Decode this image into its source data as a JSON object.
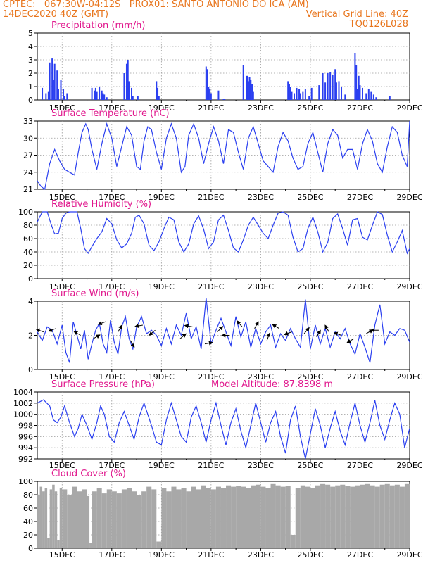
{
  "header": {
    "line1_left": "CPTEC:   067:30W-04:12S   PROX01: SANTO ANTONIO DO ICA (AM)",
    "line2_left": "14DEC2020 40Z (GMT)",
    "line2_right": "Vertical Grid Line: 40Z",
    "line3_right": "TQ0126L028"
  },
  "colors": {
    "header": "#e8761e",
    "title": "#e0168c",
    "series": "#2a3ff0",
    "cloud": "#a8a8a8",
    "grid": "#9a9a9a"
  },
  "x_tick_labels": [
    "15DEC",
    "17DEC",
    "19DEC",
    "21DEC",
    "23DEC",
    "25DEC",
    "27DEC",
    "29DEC"
  ],
  "chart_data": [
    {
      "type": "bar",
      "title": "Precipitation (mm/h)",
      "ylim": [
        0,
        5
      ],
      "yticks": [
        "0",
        "1",
        "2",
        "3",
        "4",
        "5"
      ],
      "x_unit": "day of December 2020",
      "x": [
        14.2,
        14.35,
        14.45,
        14.5,
        14.6,
        14.65,
        14.7,
        14.8,
        14.85,
        14.95,
        15.05,
        15.1,
        15.2,
        16.2,
        16.3,
        16.35,
        16.4,
        16.5,
        16.6,
        16.65,
        16.7,
        16.8,
        17.5,
        17.6,
        17.65,
        17.7,
        17.8,
        17.85,
        18.05,
        18.8,
        18.85,
        18.9,
        20.8,
        20.85,
        20.9,
        20.95,
        21.0,
        21.3,
        21.5,
        21.55,
        22.3,
        22.45,
        22.5,
        22.55,
        22.6,
        22.65,
        22.7,
        24.1,
        24.15,
        24.2,
        24.25,
        24.35,
        24.45,
        24.55,
        24.6,
        24.7,
        24.8,
        24.95,
        25.05,
        25.35,
        25.5,
        25.6,
        25.7,
        25.8,
        25.9,
        26.0,
        26.05,
        26.15,
        26.25,
        26.4,
        26.8,
        26.85,
        26.9,
        26.95,
        27.0,
        27.1,
        27.25,
        27.35,
        27.45,
        27.55,
        27.65,
        28.2
      ],
      "values": [
        0.9,
        0.5,
        0.6,
        2.8,
        3.1,
        1.5,
        2.7,
        2.2,
        0.8,
        1.5,
        0.8,
        0.3,
        0.5,
        0.9,
        0.7,
        0.9,
        0.6,
        1.0,
        0.7,
        0.5,
        0.4,
        0.2,
        2.0,
        2.7,
        3.0,
        1.4,
        0.9,
        0.3,
        0.3,
        1.4,
        0.9,
        0.3,
        2.5,
        2.3,
        1.0,
        0.8,
        0.5,
        0.7,
        0.1,
        0.1,
        2.6,
        1.8,
        1.4,
        1.7,
        1.5,
        1.2,
        0.6,
        1.4,
        1.2,
        1.0,
        0.6,
        0.5,
        0.9,
        0.8,
        0.5,
        0.6,
        0.8,
        0.3,
        0.9,
        1.1,
        2.0,
        1.3,
        2.0,
        2.1,
        1.9,
        2.3,
        1.3,
        1.4,
        1.0,
        0.4,
        3.5,
        2.6,
        0.8,
        1.8,
        1.1,
        0.9,
        0.5,
        0.8,
        0.6,
        0.4,
        0.2,
        0.3
      ]
    },
    {
      "type": "line",
      "title": "Surface Temperature (nC)",
      "ylim": [
        21,
        33
      ],
      "yticks": [
        "21",
        "24",
        "27",
        "30",
        "33"
      ],
      "x_unit": "day of December 2020",
      "x": [
        14.0,
        14.15,
        14.3,
        14.5,
        14.7,
        14.9,
        15.1,
        15.3,
        15.5,
        15.65,
        15.8,
        15.95,
        16.05,
        16.2,
        16.4,
        16.6,
        16.8,
        17.0,
        17.2,
        17.4,
        17.6,
        17.8,
        18.0,
        18.15,
        18.3,
        18.45,
        18.6,
        18.8,
        19.0,
        19.2,
        19.4,
        19.6,
        19.8,
        19.95,
        20.1,
        20.3,
        20.5,
        20.7,
        20.9,
        21.1,
        21.3,
        21.5,
        21.7,
        21.9,
        22.1,
        22.3,
        22.5,
        22.7,
        22.9,
        23.1,
        23.3,
        23.5,
        23.7,
        23.9,
        24.1,
        24.3,
        24.5,
        24.7,
        24.9,
        25.1,
        25.3,
        25.5,
        25.7,
        25.9,
        26.1,
        26.3,
        26.5,
        26.7,
        26.9,
        27.1,
        27.3,
        27.5,
        27.7,
        27.9,
        28.1,
        28.3,
        28.5,
        28.7,
        28.9,
        29.0
      ],
      "values": [
        22.5,
        21.5,
        21.0,
        25.5,
        28.0,
        26.0,
        24.5,
        24.0,
        23.5,
        27.5,
        31.0,
        32.5,
        31.5,
        28.0,
        24.5,
        29.0,
        32.5,
        30.0,
        25.0,
        28.5,
        32.0,
        30.5,
        25.0,
        24.5,
        29.5,
        32.0,
        31.5,
        27.5,
        24.5,
        30.0,
        32.5,
        30.0,
        24.0,
        25.0,
        30.5,
        32.5,
        30.0,
        25.5,
        29.0,
        32.0,
        29.5,
        25.5,
        31.5,
        31.0,
        27.5,
        24.5,
        30.0,
        32.0,
        29.0,
        26.0,
        25.0,
        24.0,
        28.5,
        31.0,
        29.5,
        26.5,
        24.5,
        25.0,
        29.0,
        31.0,
        27.5,
        24.0,
        29.0,
        31.5,
        30.5,
        26.5,
        28.0,
        28.0,
        24.5,
        29.0,
        31.5,
        29.5,
        25.5,
        24.0,
        28.5,
        32.0,
        31.0,
        27.0,
        25.0,
        33.0
      ]
    },
    {
      "type": "line",
      "title": "Relative Humidity (%)",
      "ylim": [
        0,
        100
      ],
      "yticks": [
        "0",
        "20",
        "40",
        "60",
        "80",
        "100"
      ],
      "x_unit": "day of December 2020",
      "x": [
        14.0,
        14.2,
        14.4,
        14.55,
        14.7,
        14.85,
        15.0,
        15.15,
        15.3,
        15.45,
        15.6,
        15.75,
        15.9,
        16.05,
        16.2,
        16.4,
        16.6,
        16.8,
        17.0,
        17.2,
        17.4,
        17.6,
        17.8,
        17.95,
        18.1,
        18.3,
        18.5,
        18.7,
        18.9,
        19.1,
        19.3,
        19.5,
        19.7,
        19.9,
        20.1,
        20.3,
        20.5,
        20.7,
        20.9,
        21.1,
        21.3,
        21.5,
        21.7,
        21.9,
        22.1,
        22.3,
        22.5,
        22.7,
        22.9,
        23.1,
        23.3,
        23.5,
        23.7,
        23.9,
        24.1,
        24.3,
        24.5,
        24.7,
        24.9,
        25.1,
        25.3,
        25.5,
        25.7,
        25.9,
        26.1,
        26.3,
        26.5,
        26.7,
        26.9,
        27.1,
        27.3,
        27.5,
        27.7,
        27.9,
        28.1,
        28.3,
        28.5,
        28.7,
        28.9,
        29.0
      ],
      "values": [
        85,
        100,
        100,
        82,
        67,
        68,
        90,
        98,
        100,
        100,
        100,
        75,
        45,
        38,
        48,
        60,
        70,
        90,
        82,
        58,
        46,
        52,
        68,
        92,
        95,
        82,
        50,
        42,
        55,
        75,
        92,
        88,
        55,
        40,
        52,
        82,
        94,
        74,
        45,
        55,
        88,
        95,
        72,
        46,
        40,
        58,
        80,
        92,
        80,
        68,
        60,
        80,
        98,
        100,
        95,
        62,
        40,
        45,
        75,
        92,
        70,
        40,
        54,
        90,
        97,
        75,
        50,
        88,
        90,
        62,
        58,
        80,
        100,
        96,
        65,
        40,
        55,
        72,
        38,
        45
      ]
    },
    {
      "type": "line",
      "title": "Surface Wind (m/s)",
      "ylim": [
        0,
        4
      ],
      "yticks": [
        "0",
        "2",
        "4"
      ],
      "x_unit": "day of December 2020",
      "x": [
        14.0,
        14.2,
        14.4,
        14.6,
        14.8,
        15.0,
        15.15,
        15.3,
        15.45,
        15.6,
        15.75,
        15.9,
        16.05,
        16.2,
        16.35,
        16.5,
        16.65,
        16.8,
        16.95,
        17.1,
        17.25,
        17.4,
        17.55,
        17.7,
        17.85,
        18.0,
        18.2,
        18.4,
        18.6,
        18.8,
        19.0,
        19.2,
        19.4,
        19.6,
        19.8,
        20.0,
        20.2,
        20.4,
        20.6,
        20.8,
        21.0,
        21.2,
        21.4,
        21.6,
        21.8,
        22.0,
        22.2,
        22.4,
        22.6,
        22.8,
        23.0,
        23.2,
        23.4,
        23.6,
        23.8,
        24.0,
        24.2,
        24.4,
        24.6,
        24.8,
        25.0,
        25.2,
        25.4,
        25.6,
        25.8,
        26.0,
        26.2,
        26.4,
        26.6,
        26.8,
        27.0,
        27.2,
        27.4,
        27.6,
        27.8,
        28.0,
        28.2,
        28.4,
        28.6,
        28.8,
        29.0
      ],
      "values": [
        2.2,
        1.7,
        2.5,
        2.3,
        1.5,
        2.6,
        1.0,
        0.4,
        2.8,
        2.0,
        1.2,
        2.3,
        0.6,
        1.5,
        2.3,
        2.7,
        1.5,
        1.0,
        2.9,
        1.6,
        0.9,
        2.5,
        3.1,
        1.8,
        1.2,
        2.5,
        3.1,
        2.1,
        2.3,
        2.0,
        1.4,
        2.4,
        1.5,
        2.6,
        2.0,
        3.3,
        1.8,
        2.5,
        1.2,
        4.2,
        1.5,
        2.3,
        3.0,
        2.2,
        1.4,
        3.1,
        1.9,
        2.8,
        1.3,
        2.4,
        1.5,
        2.2,
        2.6,
        1.3,
        2.1,
        1.7,
        2.4,
        1.8,
        1.3,
        4.1,
        1.2,
        2.6,
        1.5,
        2.4,
        1.3,
        2.2,
        1.8,
        2.4,
        1.5,
        0.9,
        2.1,
        1.3,
        0.4,
        2.6,
        3.8,
        1.5,
        2.2,
        2.0,
        2.4,
        2.3,
        1.6
      ]
    },
    {
      "type": "line",
      "title": "Surface Pressure (hPa)",
      "annotation": "Model Altitude: 87.8398 m",
      "ylim": [
        992,
        1004
      ],
      "yticks": [
        "992",
        "994",
        "996",
        "998",
        "1000",
        "1002",
        "1004"
      ],
      "x_unit": "day of December 2020",
      "x": [
        14.0,
        14.25,
        14.5,
        14.65,
        14.8,
        14.95,
        15.1,
        15.3,
        15.5,
        15.65,
        15.8,
        16.0,
        16.2,
        16.4,
        16.55,
        16.7,
        16.9,
        17.1,
        17.3,
        17.5,
        17.7,
        17.9,
        18.1,
        18.3,
        18.45,
        18.6,
        18.8,
        19.0,
        19.2,
        19.4,
        19.6,
        19.8,
        20.0,
        20.2,
        20.4,
        20.6,
        20.8,
        21.0,
        21.2,
        21.4,
        21.6,
        21.8,
        22.0,
        22.2,
        22.4,
        22.6,
        22.8,
        23.0,
        23.2,
        23.4,
        23.6,
        23.8,
        24.0,
        24.2,
        24.4,
        24.6,
        24.8,
        25.0,
        25.2,
        25.4,
        25.6,
        25.8,
        26.0,
        26.2,
        26.4,
        26.6,
        26.8,
        27.0,
        27.2,
        27.4,
        27.6,
        27.8,
        28.0,
        28.2,
        28.4,
        28.6,
        28.8,
        29.0
      ],
      "values": [
        1002.0,
        1002.6,
        1001.5,
        999.0,
        998.5,
        999.5,
        1001.5,
        998.5,
        996.0,
        997.5,
        1000.0,
        998.0,
        995.5,
        998.5,
        1001.5,
        1000.0,
        996.0,
        995.0,
        998.5,
        1000.5,
        998.0,
        995.5,
        999.5,
        1002.0,
        1000.0,
        998.0,
        995.0,
        994.5,
        999.0,
        1002.0,
        999.0,
        996.0,
        995.0,
        999.5,
        1001.5,
        998.5,
        995.0,
        999.0,
        1002.0,
        998.0,
        994.5,
        998.5,
        1001.0,
        997.0,
        994.0,
        998.0,
        1002.0,
        998.5,
        995.0,
        998.5,
        1000.5,
        996.0,
        993.0,
        999.0,
        1001.5,
        996.0,
        992.0,
        996.5,
        1001.0,
        998.0,
        994.0,
        997.5,
        1000.5,
        997.0,
        994.5,
        998.5,
        1002.0,
        998.0,
        995.0,
        998.5,
        1002.5,
        998.0,
        995.5,
        999.0,
        1002.0,
        1000.0,
        994.0,
        997.5
      ]
    },
    {
      "type": "area",
      "title": "Cloud Cover (%)",
      "ylim": [
        0,
        100
      ],
      "yticks": [
        "0",
        "20",
        "40",
        "60",
        "80",
        "100"
      ],
      "x_unit": "day of December 2020",
      "x": [
        14.0,
        14.1,
        14.2,
        14.3,
        14.4,
        14.5,
        14.6,
        14.7,
        14.8,
        14.9,
        15.0,
        15.2,
        15.4,
        15.6,
        15.8,
        16.0,
        16.1,
        16.2,
        16.4,
        16.6,
        16.8,
        17.0,
        17.2,
        17.4,
        17.6,
        17.8,
        18.0,
        18.2,
        18.4,
        18.6,
        18.8,
        19.0,
        19.2,
        19.4,
        19.6,
        19.8,
        20.0,
        20.2,
        20.4,
        20.6,
        20.8,
        21.0,
        21.2,
        21.4,
        21.6,
        21.8,
        22.0,
        22.2,
        22.4,
        22.6,
        22.8,
        23.0,
        23.2,
        23.4,
        23.6,
        23.8,
        24.0,
        24.2,
        24.4,
        24.6,
        24.8,
        25.0,
        25.2,
        25.4,
        25.6,
        25.8,
        26.0,
        26.2,
        26.4,
        26.6,
        26.8,
        27.0,
        27.2,
        27.4,
        27.6,
        27.8,
        28.0,
        28.2,
        28.4,
        28.6,
        28.8,
        29.0
      ],
      "values": [
        80,
        92,
        85,
        90,
        15,
        88,
        95,
        85,
        12,
        90,
        88,
        80,
        92,
        85,
        88,
        78,
        8,
        85,
        90,
        82,
        88,
        85,
        82,
        88,
        90,
        85,
        80,
        85,
        92,
        88,
        10,
        90,
        85,
        92,
        88,
        90,
        85,
        92,
        88,
        94,
        90,
        88,
        92,
        90,
        94,
        92,
        93,
        92,
        90,
        94,
        95,
        92,
        90,
        96,
        94,
        92,
        93,
        20,
        90,
        94,
        92,
        90,
        94,
        96,
        95,
        92,
        94,
        95,
        93,
        92,
        94,
        95,
        96,
        94,
        92,
        95,
        96,
        94,
        95,
        92,
        96,
        94
      ]
    },
    {
      "type": "vector",
      "title": "Surface Wind (m/s) direction arrows",
      "x_unit": "day of December 2020",
      "x": [
        14.25,
        14.75,
        15.75,
        16.25,
        16.75,
        17.25,
        17.75,
        18.25,
        18.75,
        19.75,
        20.25,
        20.75,
        21.25,
        21.75,
        22.25,
        22.75,
        23.25,
        23.75,
        24.25,
        24.75,
        25.25,
        25.75,
        26.25,
        26.75,
        27.25,
        27.75
      ],
      "y": [
        2.2,
        2.4,
        2.0,
        1.8,
        2.8,
        2.2,
        1.7,
        2.6,
        2.3,
        1.8,
        2.5,
        1.5,
        2.2,
        2.0,
        2.5,
        2.4,
        1.7,
        2.4,
        2.2,
        2.1,
        1.9,
        2.2,
        2.0,
        1.8,
        2.1,
        2.3
      ],
      "direction_deg_math": [
        160,
        200,
        150,
        30,
        200,
        60,
        300,
        190,
        220,
        40,
        170,
        10,
        45,
        180,
        130,
        60,
        70,
        150,
        200,
        50,
        60,
        120,
        160,
        210,
        30,
        180
      ]
    }
  ]
}
